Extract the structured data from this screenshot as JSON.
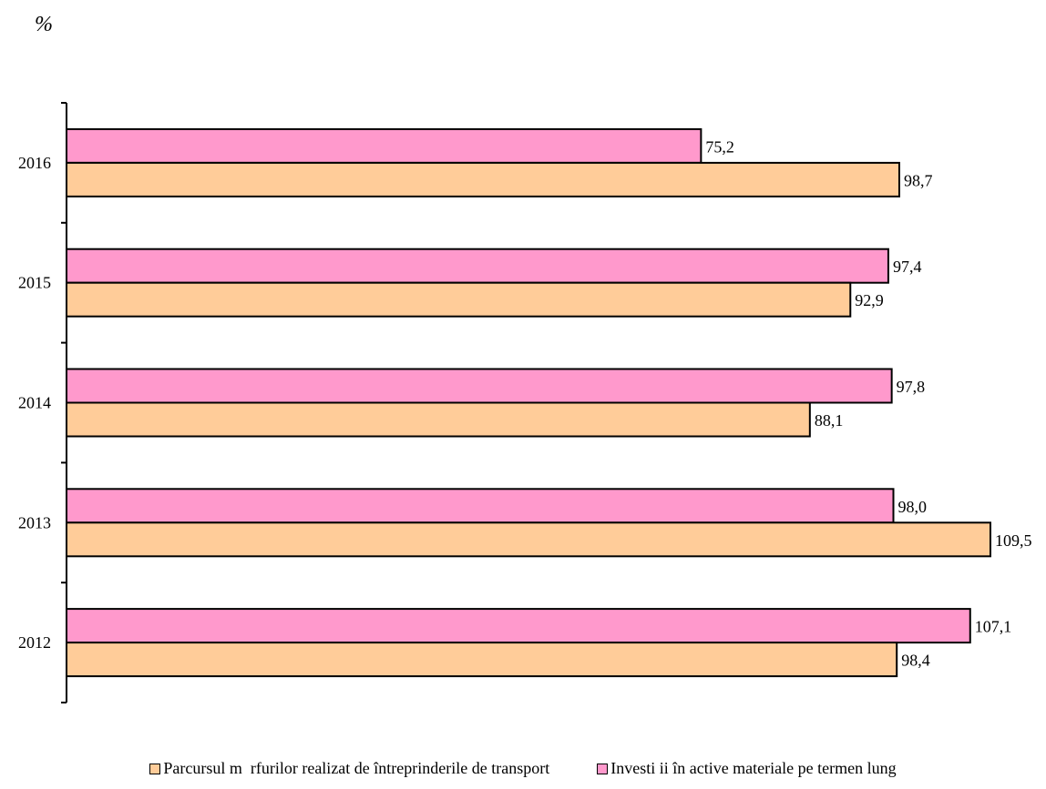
{
  "chart_data": {
    "type": "bar",
    "orientation": "horizontal",
    "unit_label": "%",
    "title": "",
    "xlabel": "",
    "ylabel": "",
    "categories": [
      "2016",
      "2015",
      "2014",
      "2013",
      "2012"
    ],
    "series": [
      {
        "name": "Investi ii în active materiale pe termen lung",
        "color": "#ff99cc",
        "values": [
          75.2,
          97.4,
          97.8,
          98.0,
          107.1
        ],
        "labels": [
          "75,2",
          "97,4",
          "97,8",
          "98,0",
          "107,1"
        ]
      },
      {
        "name": "Parcursul m  rfurilor realizat de întreprinderile de transport",
        "color": "#ffcc99",
        "values": [
          98.7,
          92.9,
          88.1,
          109.5,
          98.4
        ],
        "labels": [
          "98,7",
          "92,9",
          "88,1",
          "109,5",
          "98,4"
        ]
      }
    ],
    "legend_order": [
      1,
      0
    ],
    "xlim": [
      0,
      110
    ],
    "grid": false,
    "legend_position": "bottom"
  }
}
